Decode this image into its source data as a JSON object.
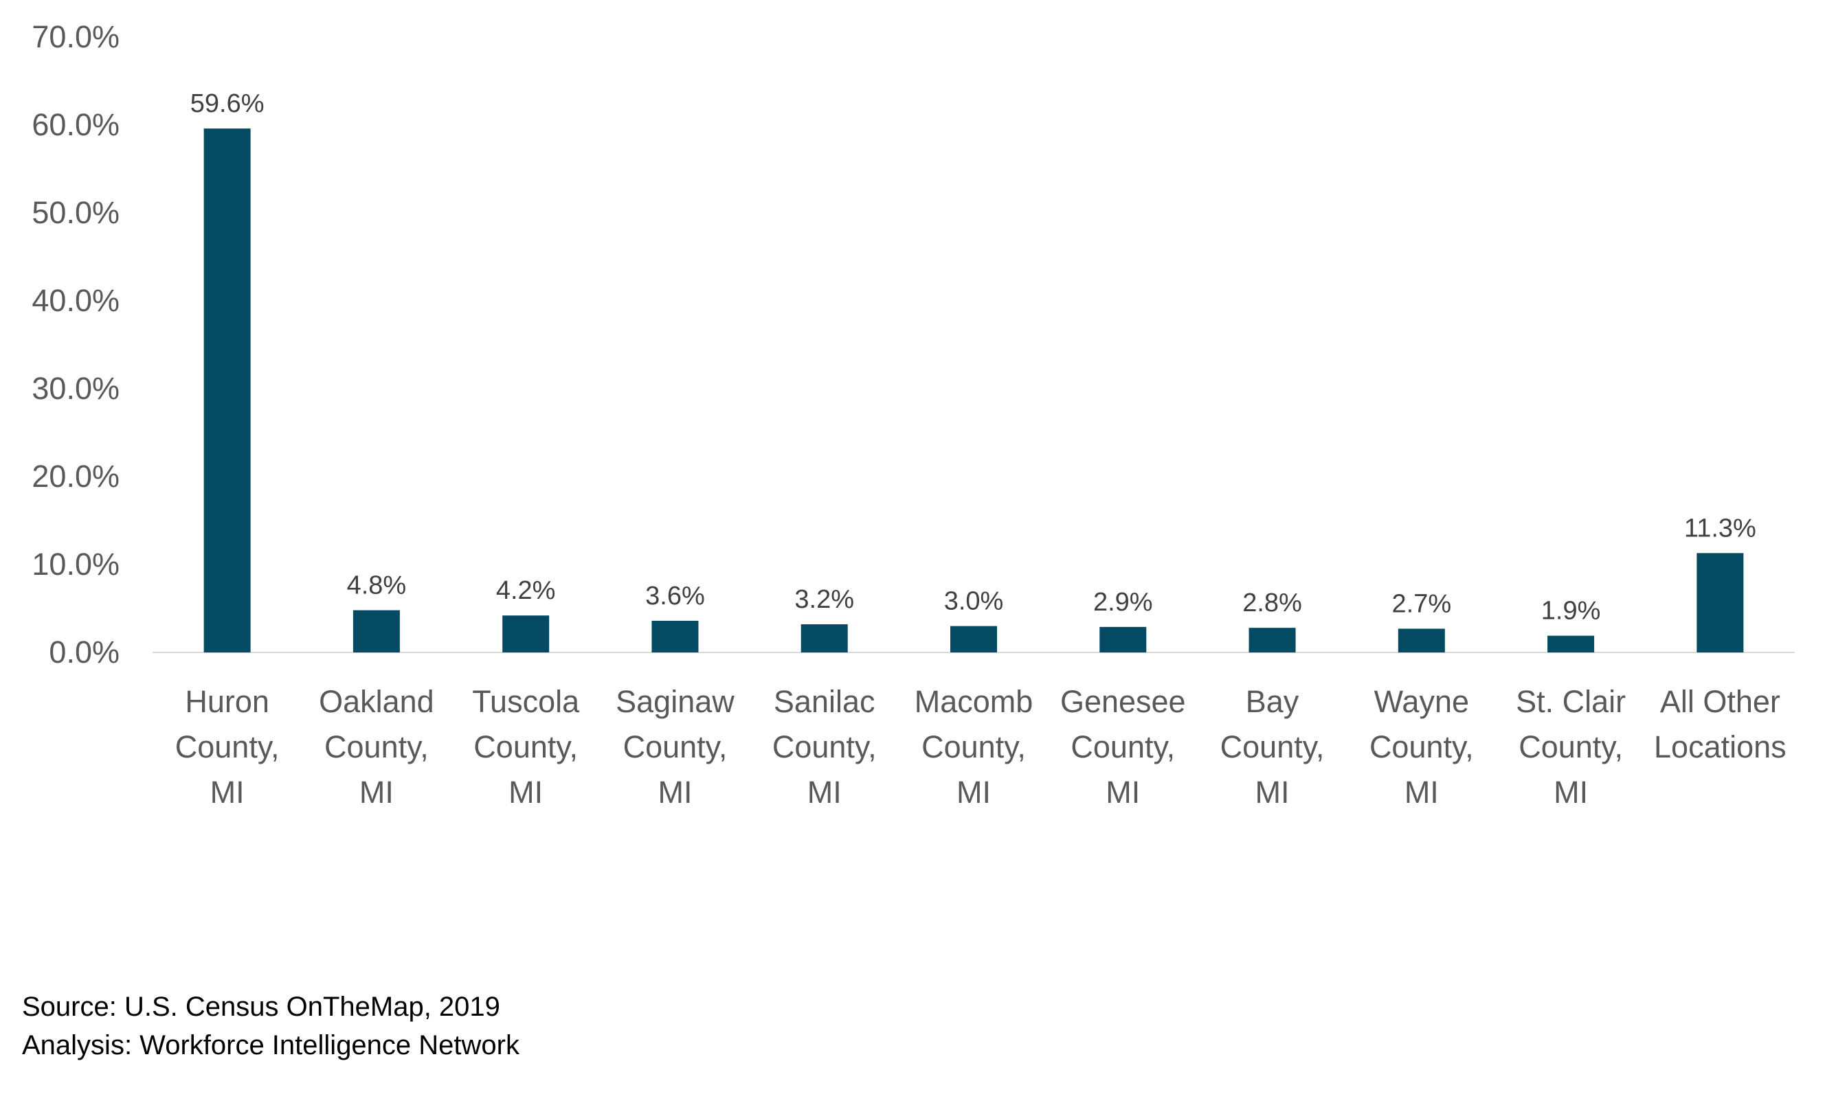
{
  "chart_data": {
    "type": "bar",
    "categories": [
      [
        "Huron",
        "County,",
        "MI"
      ],
      [
        "Oakland",
        "County,",
        "MI"
      ],
      [
        "Tuscola",
        "County,",
        "MI"
      ],
      [
        "Saginaw",
        "County,",
        "MI"
      ],
      [
        "Sanilac",
        "County,",
        "MI"
      ],
      [
        "Macomb",
        "County,",
        "MI"
      ],
      [
        "Genesee",
        "County,",
        "MI"
      ],
      [
        "Bay",
        "County,",
        "MI"
      ],
      [
        "Wayne",
        "County,",
        "MI"
      ],
      [
        "St. Clair",
        "County,",
        "MI"
      ],
      [
        "All Other",
        "Locations"
      ]
    ],
    "values": [
      59.6,
      4.8,
      4.2,
      3.6,
      3.2,
      3.0,
      2.9,
      2.8,
      2.7,
      1.9,
      11.3
    ],
    "data_labels": [
      "59.6%",
      "4.8%",
      "4.2%",
      "3.6%",
      "3.2%",
      "3.0%",
      "2.9%",
      "2.8%",
      "2.7%",
      "1.9%",
      "11.3%"
    ],
    "y_ticks": [
      0,
      10,
      20,
      30,
      40,
      50,
      60,
      70
    ],
    "y_tick_labels": [
      "0.0%",
      "10.0%",
      "20.0%",
      "30.0%",
      "40.0%",
      "50.0%",
      "60.0%",
      "70.0%"
    ],
    "ylim": [
      0,
      70
    ],
    "title": "",
    "xlabel": "",
    "ylabel": "",
    "grid": false,
    "bar_color": "#044A62",
    "axis_color": "#D9D9D9",
    "tick_label_color": "#595959",
    "data_label_color": "#404040"
  },
  "notes": {
    "source": "Source: U.S. Census OnTheMap, 2019",
    "analysis": "Analysis: Workforce Intelligence Network"
  }
}
